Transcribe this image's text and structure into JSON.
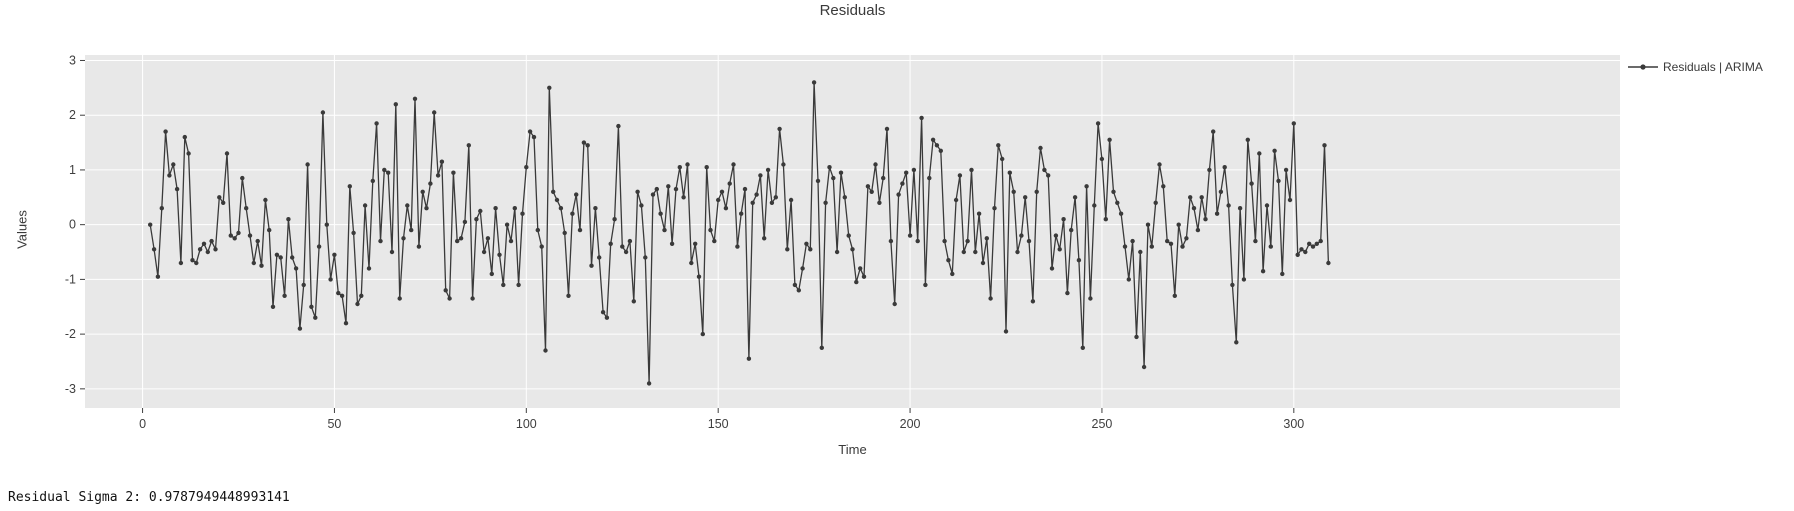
{
  "colors": {
    "page_bg": "#ffffff",
    "plot_bg": "#e8e8e8",
    "grid": "#ffffff",
    "line": "#3a3a3a",
    "marker": "#3a3a3a",
    "tick_text": "#3f3f3f",
    "title_text": "#3a3a3a"
  },
  "footer": {
    "text": "Residual Sigma 2: 0.9787949448993141"
  },
  "legend": {
    "label": "Residuals | ARIMA"
  },
  "chart_data": {
    "type": "line",
    "title": "Residuals",
    "xlabel": "Time",
    "ylabel": "Values",
    "xticks": [
      0,
      50,
      100,
      150,
      200,
      250,
      300
    ],
    "yticks": [
      -3,
      -2,
      -1,
      0,
      1,
      2,
      3
    ],
    "xlim": [
      -15,
      385
    ],
    "ylim": [
      -3.35,
      3.1
    ],
    "grid": true,
    "legend_position": "right-outside",
    "series": [
      {
        "name": "Residuals | ARIMA",
        "color": "#3a3a3a",
        "marker": "circle",
        "x_start": 2,
        "x_step": 1,
        "values": [
          0.0,
          -0.45,
          -0.95,
          0.3,
          1.7,
          0.9,
          1.1,
          0.65,
          -0.7,
          1.6,
          1.3,
          -0.65,
          -0.7,
          -0.45,
          -0.35,
          -0.5,
          -0.3,
          -0.45,
          0.5,
          0.4,
          1.3,
          -0.2,
          -0.25,
          -0.15,
          0.85,
          0.3,
          -0.2,
          -0.7,
          -0.3,
          -0.75,
          0.45,
          -0.1,
          -1.5,
          -0.55,
          -0.6,
          -1.3,
          0.1,
          -0.6,
          -0.8,
          -1.9,
          -1.1,
          1.1,
          -1.5,
          -1.7,
          -0.4,
          2.05,
          0.0,
          -1.0,
          -0.55,
          -1.25,
          -1.3,
          -1.8,
          0.7,
          -0.15,
          -1.45,
          -1.3,
          0.35,
          -0.8,
          0.8,
          1.85,
          -0.3,
          1.0,
          0.95,
          -0.5,
          2.2,
          -1.35,
          -0.25,
          0.35,
          -0.1,
          2.3,
          -0.4,
          0.6,
          0.3,
          0.75,
          2.05,
          0.9,
          1.15,
          -1.2,
          -1.35,
          0.95,
          -0.3,
          -0.25,
          0.05,
          1.45,
          -1.35,
          0.1,
          0.25,
          -0.5,
          -0.25,
          -0.9,
          0.3,
          -0.55,
          -1.1,
          0.0,
          -0.3,
          0.3,
          -1.1,
          0.2,
          1.05,
          1.7,
          1.6,
          -0.1,
          -0.4,
          -2.3,
          2.5,
          0.6,
          0.45,
          0.3,
          -0.15,
          -1.3,
          0.2,
          0.55,
          -0.1,
          1.5,
          1.45,
          -0.75,
          0.3,
          -0.6,
          -1.6,
          -1.7,
          -0.35,
          0.1,
          1.8,
          -0.4,
          -0.5,
          -0.3,
          -1.4,
          0.6,
          0.35,
          -0.6,
          -2.9,
          0.55,
          0.65,
          0.2,
          -0.1,
          0.7,
          -0.35,
          0.65,
          1.05,
          0.5,
          1.1,
          -0.7,
          -0.35,
          -0.95,
          -2.0,
          1.05,
          -0.1,
          -0.3,
          0.45,
          0.6,
          0.3,
          0.75,
          1.1,
          -0.4,
          0.2,
          0.65,
          -2.45,
          0.4,
          0.55,
          0.9,
          -0.25,
          1.0,
          0.4,
          0.5,
          1.75,
          1.1,
          -0.45,
          0.45,
          -1.1,
          -1.2,
          -0.8,
          -0.35,
          -0.45,
          2.6,
          0.8,
          -2.25,
          0.4,
          1.05,
          0.85,
          -0.5,
          0.95,
          0.5,
          -0.2,
          -0.45,
          -1.05,
          -0.8,
          -0.95,
          0.7,
          0.6,
          1.1,
          0.4,
          0.85,
          1.75,
          -0.3,
          -1.45,
          0.55,
          0.75,
          0.95,
          -0.2,
          1.0,
          -0.3,
          1.95,
          -1.1,
          0.85,
          1.55,
          1.45,
          1.35,
          -0.3,
          -0.65,
          -0.9,
          0.45,
          0.9,
          -0.5,
          -0.3,
          1.0,
          -0.5,
          0.2,
          -0.7,
          -0.25,
          -1.35,
          0.3,
          1.45,
          1.2,
          -1.95,
          0.95,
          0.6,
          -0.5,
          -0.2,
          0.5,
          -0.3,
          -1.4,
          0.6,
          1.4,
          1.0,
          0.9,
          -0.8,
          -0.2,
          -0.45,
          0.1,
          -1.25,
          -0.1,
          0.5,
          -0.65,
          -2.25,
          0.7,
          -1.35,
          0.35,
          1.85,
          1.2,
          0.1,
          1.55,
          0.6,
          0.4,
          0.2,
          -0.4,
          -1.0,
          -0.3,
          -2.05,
          -0.5,
          -2.6,
          0.0,
          -0.4,
          0.4,
          1.1,
          0.7,
          -0.3,
          -0.35,
          -1.3,
          0.0,
          -0.4,
          -0.25,
          0.5,
          0.3,
          -0.1,
          0.5,
          0.1,
          1.0,
          1.7,
          0.2,
          0.6,
          1.05,
          0.35,
          -1.1,
          -2.15,
          0.3,
          -1.0,
          1.55,
          0.75,
          -0.3,
          1.3,
          -0.85,
          0.35,
          -0.4,
          1.35,
          0.8,
          -0.9,
          1.0,
          0.45,
          1.85,
          -0.55,
          -0.45,
          -0.5,
          -0.35,
          -0.4,
          -0.35,
          -0.3,
          1.45,
          -0.7
        ]
      }
    ]
  }
}
